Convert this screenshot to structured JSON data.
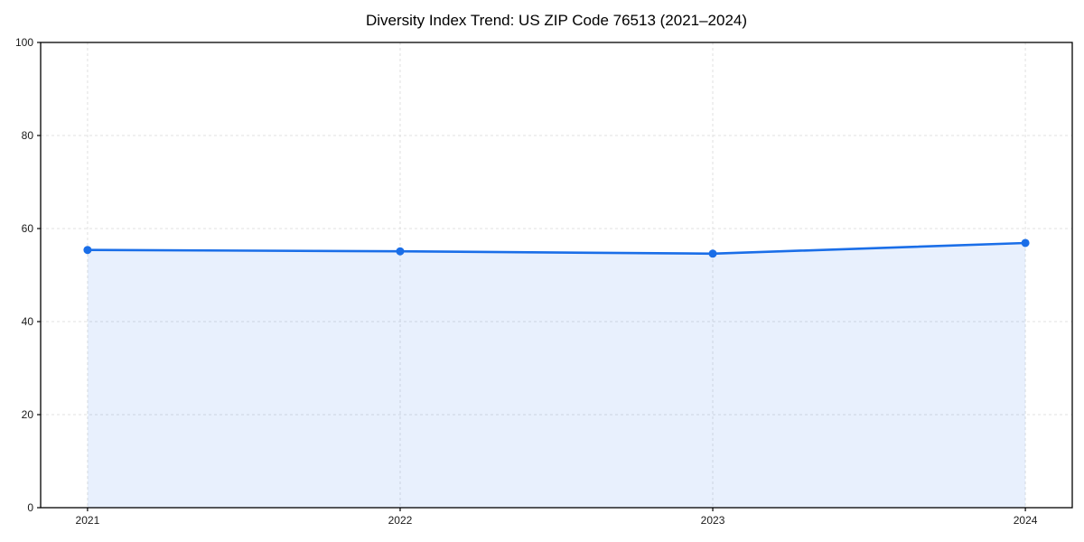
{
  "chart_data": {
    "type": "area",
    "title": "Diversity Index Trend: US ZIP Code 76513 (2021–2024)",
    "categories": [
      "2021",
      "2022",
      "2023",
      "2024"
    ],
    "x": [
      2021,
      2022,
      2023,
      2024
    ],
    "series": [
      {
        "name": "Diversity Index",
        "values": [
          55.4,
          55.1,
          54.6,
          56.9
        ]
      }
    ],
    "xlabel": "",
    "ylabel": "",
    "xlim": [
      2020.85,
      2024.15
    ],
    "ylim": [
      0,
      100
    ],
    "yticks": [
      0,
      20,
      40,
      60,
      80,
      100
    ],
    "grid": "dashed, both axes",
    "legend": "none",
    "colors": {
      "line": "#1a6ee8",
      "marker": "#1a6ee8",
      "fill": "rgba(26,110,232,0.10)",
      "grid": "#e0e0e0",
      "axis": "#000000",
      "tick_label": "#1a1a1a",
      "title": "#000000"
    }
  }
}
